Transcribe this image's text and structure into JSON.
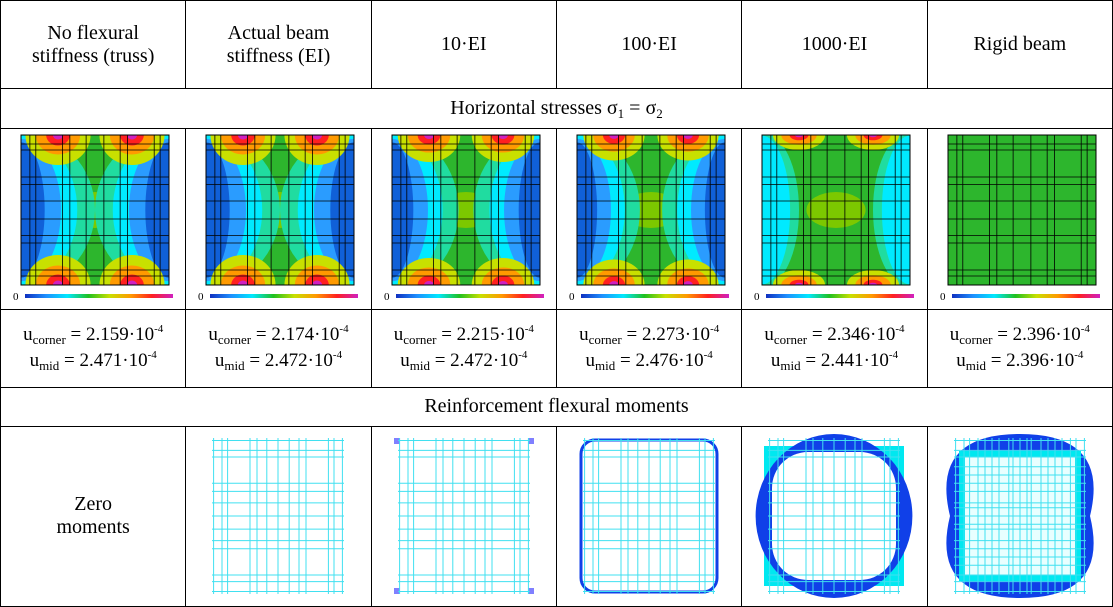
{
  "columns": [
    {
      "header_lines": [
        "No flexural",
        "stiffness (truss)"
      ],
      "scale_min": 0,
      "u_corner": {
        "symbol": "u",
        "subscript": "corner",
        "value": " = 2.159·10",
        "exponent": "-4"
      },
      "u_mid": {
        "symbol": "u",
        "subscript": "mid",
        "value": " = 2.471·10",
        "exponent": "-4"
      }
    },
    {
      "header_lines": [
        "Actual beam",
        "stiffness (EI)"
      ],
      "scale_min": 0,
      "u_corner": {
        "symbol": "u",
        "subscript": "corner",
        "value": " = 2.174·10",
        "exponent": "-4"
      },
      "u_mid": {
        "symbol": "u",
        "subscript": "mid",
        "value": " = 2.472·10",
        "exponent": "-4"
      }
    },
    {
      "header_lines": [
        "10·EI"
      ],
      "scale_min": 0,
      "u_corner": {
        "symbol": "u",
        "subscript": "corner",
        "value": " = 2.215·10",
        "exponent": "-4"
      },
      "u_mid": {
        "symbol": "u",
        "subscript": "mid",
        "value": " = 2.472·10",
        "exponent": "-4"
      }
    },
    {
      "header_lines": [
        "100·EI"
      ],
      "scale_min": 0,
      "u_corner": {
        "symbol": "u",
        "subscript": "corner",
        "value": " = 2.273·10",
        "exponent": "-4"
      },
      "u_mid": {
        "symbol": "u",
        "subscript": "mid",
        "value": " = 2.476·10",
        "exponent": "-4"
      }
    },
    {
      "header_lines": [
        "1000·EI"
      ],
      "scale_min": 0,
      "u_corner": {
        "symbol": "u",
        "subscript": "corner",
        "value": " = 2.346·10",
        "exponent": "-4"
      },
      "u_mid": {
        "symbol": "u",
        "subscript": "mid",
        "value": " = 2.441·10",
        "exponent": "-4"
      }
    },
    {
      "header_lines": [
        "Rigid beam"
      ],
      "scale_min": 0,
      "u_corner": {
        "symbol": "u",
        "subscript": "corner",
        "value": " = 2.396·10",
        "exponent": "-4"
      },
      "u_mid": {
        "symbol": "u",
        "subscript": "mid",
        "value": " = 2.396·10",
        "exponent": "-4"
      }
    }
  ],
  "stress_section": {
    "text": "Horizontal stresses σ",
    "sub1": "1",
    "mid": " = σ",
    "sub2": "2"
  },
  "moment_section": {
    "text": "Reinforcement flexural moments"
  },
  "zero_moments_lines": [
    "Zero",
    "moments"
  ]
}
